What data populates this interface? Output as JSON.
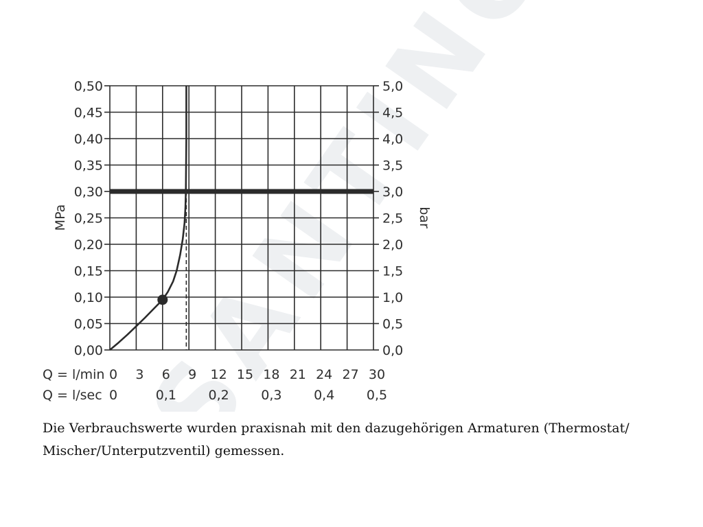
{
  "chart_data": {
    "type": "line",
    "y_left_label": "MPa",
    "y_right_label": "bar",
    "y_left_ticks": [
      "0,00",
      "0,05",
      "0,10",
      "0,15",
      "0,20",
      "0,25",
      "0,30",
      "0,35",
      "0,40",
      "0,45",
      "0,50"
    ],
    "y_right_ticks": [
      "0,0",
      "0,5",
      "1,0",
      "1,5",
      "2,0",
      "2,5",
      "3,0",
      "3,5",
      "4,0",
      "4,5",
      "5,0"
    ],
    "ylim": [
      0,
      0.5
    ],
    "x_rows": [
      {
        "label": "Q = l/min",
        "ticks": [
          "0",
          "3",
          "6",
          "9",
          "12",
          "15",
          "18",
          "21",
          "24",
          "27",
          "30"
        ],
        "step": 1
      },
      {
        "label": "Q = l/sec",
        "ticks": [
          "0",
          "0,1",
          "0,2",
          "0,3",
          "0,4",
          "0,5"
        ],
        "step": 2
      }
    ],
    "xlim": [
      0,
      30
    ],
    "x_unit": "l/min",
    "grid": true,
    "series": [
      {
        "x": [
          0,
          1,
          2,
          3,
          4,
          5,
          6,
          6.6,
          7.2,
          7.6,
          8.0,
          8.3,
          8.5,
          8.6,
          8.65,
          8.7,
          8.7
        ],
        "y": [
          0,
          0.014,
          0.029,
          0.045,
          0.061,
          0.078,
          0.095,
          0.11,
          0.13,
          0.15,
          0.18,
          0.21,
          0.24,
          0.27,
          0.3,
          0.4,
          0.5
        ],
        "color": "#2b2b2b"
      }
    ],
    "marker": {
      "x": 6,
      "y": 0.095
    },
    "reference_line": {
      "y": 0.3,
      "color": "#2b2b2b"
    },
    "dashed_drop": {
      "x": 8.7,
      "y_from": 0.3,
      "y_to": 0
    }
  },
  "caption": "Die Verbrauchswerte wurden praxisnah mit den dazugehörigen Armaturen (Thermostat/ Mischer/Unterputzventil) gemessen.",
  "watermark": "SANTINO"
}
